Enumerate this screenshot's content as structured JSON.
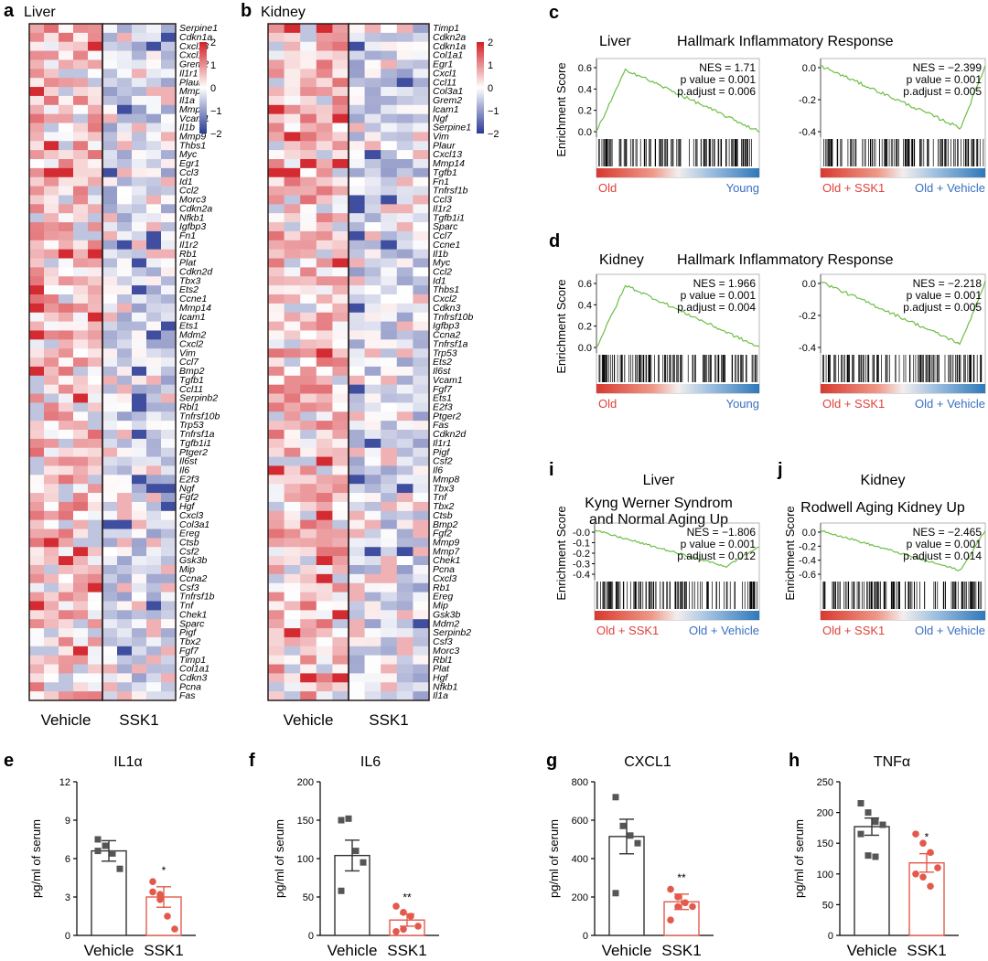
{
  "panels": {
    "a": "a",
    "b": "b",
    "c": "c",
    "d": "d",
    "i": "i",
    "j": "j",
    "e": "e",
    "f": "f",
    "g": "g",
    "h": "h"
  },
  "colors": {
    "heat_low": "#2b3a94",
    "heat_mid": "#ffffff",
    "heat_high": "#d21f26",
    "gsea_line": "#6cbf45",
    "red_label": "#e0413a",
    "blue_label": "#3a6fc2",
    "ssk1_bar": "#e35a4c",
    "vehicle_bar": "#333333"
  },
  "heatmaps": [
    {
      "id": "a",
      "title": "Liver",
      "genes": [
        "Serpine1",
        "Cdkn1a",
        "Cxcl13",
        "Cxcl1",
        "Grem2",
        "Il1r1",
        "Plaur",
        "Mmp8",
        "Il1a",
        "Mmp7",
        "Vcam1",
        "Il1b",
        "Mmp9",
        "Thbs1",
        "Myc",
        "Egr1",
        "Ccl3",
        "Id1",
        "Ccl2",
        "Morc3",
        "Cdkn2a",
        "Nfkb1",
        "Igfbp3",
        "Fn1",
        "Il1r2",
        "Rb1",
        "Plat",
        "Cdkn2d",
        "Tbx3",
        "Ets2",
        "Ccne1",
        "Mmp14",
        "Icam1",
        "Ets1",
        "Mdm2",
        "Cxcl2",
        "Vim",
        "Ccl7",
        "Bmp2",
        "Tgfb1",
        "Ccl11",
        "Serpinb2",
        "Rbl1",
        "Tnfrsf10b",
        "Trp53",
        "Tnfrsf1a",
        "Tgfb1i1",
        "Ptger2",
        "Il6st",
        "Il6",
        "E2f3",
        "Ngf",
        "Fgf2",
        "Hgf",
        "Cxcl3",
        "Col3a1",
        "Ereg",
        "Ctsb",
        "Csf2",
        "Gsk3b",
        "Mip",
        "Ccna2",
        "Csf3",
        "Tnfrsf1b",
        "Tnf",
        "Chek1",
        "Sparc",
        "Pigf",
        "Tbx2",
        "Fgf7",
        "Timp1",
        "Col1a1",
        "Cdkn3",
        "Pcna",
        "Fas"
      ],
      "groups": [
        "Vehicle",
        "SSK1"
      ],
      "legend_ticks": [
        "2",
        "1",
        "0",
        "−1",
        "−2"
      ]
    },
    {
      "id": "b",
      "title": "Kidney",
      "genes": [
        "Timp1",
        "Cdkn2a",
        "Cdkn1a",
        "Col1a1",
        "Egr1",
        "Cxcl1",
        "Ccl11",
        "Col3a1",
        "Grem2",
        "Icam1",
        "Ngf",
        "Serpine1",
        "Vim",
        "Plaur",
        "Cxcl13",
        "Mmp14",
        "Tgfb1",
        "Fn1",
        "Tnfrsf1b",
        "Ccl3",
        "Il1r2",
        "Tgfb1i1",
        "Sparc",
        "Ccl7",
        "Ccne1",
        "Il1b",
        "Myc",
        "Ccl2",
        "Id1",
        "Thbs1",
        "Cxcl2",
        "Cdkn3",
        "Tnfrsf10b",
        "Igfbp3",
        "Ccna2",
        "Tnfrsf1a",
        "Trp53",
        "Ets2",
        "Il6st",
        "Vcam1",
        "Fgf7",
        "Ets1",
        "E2f3",
        "Ptger2",
        "Fas",
        "Cdkn2d",
        "Il1r1",
        "Pigf",
        "Csf2",
        "Il6",
        "Mmp8",
        "Tbx3",
        "Tnf",
        "Tbx2",
        "Ctsb",
        "Bmp2",
        "Fgf2",
        "Mmp9",
        "Mmp7",
        "Chek1",
        "Pcna",
        "Cxcl3",
        "Rb1",
        "Ereg",
        "Mip",
        "Gsk3b",
        "Mdm2",
        "Serpinb2",
        "Csf3",
        "Morc3",
        "Rbl1",
        "Plat",
        "Hgf",
        "Nfkb1",
        "Il1a"
      ],
      "groups": [
        "Vehicle",
        "SSK1"
      ],
      "legend_ticks": [
        "2",
        "1",
        "0",
        "−1",
        "−2"
      ]
    }
  ],
  "gsea": [
    {
      "id": "c",
      "tissue": "Liver",
      "geneset": "Hallmark Inflammatory Response",
      "plots": [
        {
          "nes": "NES = 1.71",
          "pval": "p value = 0.001",
          "padj": "p.adjust = 0.006",
          "yticks": [
            "0.6",
            "0.4",
            "0.2",
            "0.0"
          ],
          "left_label": "Old",
          "right_label": "Young"
        },
        {
          "nes": "NES = −2.399",
          "pval": "p value = 0.001",
          "padj": "p.adjust = 0.005",
          "yticks": [
            "0.0",
            "-0.2",
            "-0.4"
          ],
          "left_label": "Old + SSK1",
          "right_label": "Old + Vehicle"
        }
      ]
    },
    {
      "id": "d",
      "tissue": "Kidney",
      "geneset": "Hallmark Inflammatory Response",
      "plots": [
        {
          "nes": "NES = 1.966",
          "pval": "p value = 0.001",
          "padj": "p.adjust = 0.004",
          "yticks": [
            "0.6",
            "0.4",
            "0.2",
            "0.0"
          ],
          "left_label": "Old",
          "right_label": "Young"
        },
        {
          "nes": "NES = −2.218",
          "pval": "p value = 0.001",
          "padj": "p.adjust = 0.005",
          "yticks": [
            "0.0",
            "-0.2",
            "-0.4"
          ],
          "left_label": "Old + SSK1",
          "right_label": "Old + Vehicle"
        }
      ]
    },
    {
      "id": "i",
      "tissue": "Liver",
      "geneset_lines": [
        "Kyng Werner Syndrom",
        "and Normal Aging Up"
      ],
      "plots": [
        {
          "nes": "NES = −1.806",
          "pval": "p value = 0.001",
          "padj": "p.adjust = 0.012",
          "yticks": [
            "-0.0",
            "-0.1",
            "-0.2",
            "-0.3",
            "-0.4"
          ],
          "left_label": "Old + SSK1",
          "right_label": "Old + Vehicle"
        }
      ]
    },
    {
      "id": "j",
      "tissue": "Kidney",
      "geneset_lines": [
        "Rodwell Aging Kidney Up"
      ],
      "plots": [
        {
          "nes": "NES = −2.465",
          "pval": "p value = 0.001",
          "padj": "p.adjust = 0.014",
          "yticks": [
            "0.0",
            "-0.2",
            "-0.4",
            "-0.6"
          ],
          "left_label": "Old + SSK1",
          "right_label": "Old + Vehicle"
        }
      ]
    }
  ],
  "ylabel_gsea": "Enrichment Score",
  "chart_data": [
    {
      "type": "bar",
      "panel": "e",
      "title": "IL1α",
      "ylabel": "pg/ml of serum",
      "ylim": [
        0,
        12
      ],
      "yticks": [
        0,
        3,
        6,
        9,
        12
      ],
      "categories": [
        "Vehicle",
        "SSK1"
      ],
      "values": [
        6.6,
        3.0
      ],
      "sem": [
        0.8,
        0.8
      ],
      "significance": [
        "",
        "*"
      ],
      "points": [
        [
          7.5,
          7.0,
          6.4,
          5.2,
          6.6
        ],
        [
          4.2,
          2.8,
          1.5,
          0.5,
          3.4,
          3.2
        ]
      ]
    },
    {
      "type": "bar",
      "panel": "f",
      "title": "IL6",
      "ylabel": "pg/ml of serum",
      "ylim": [
        0,
        200
      ],
      "yticks": [
        0,
        50,
        100,
        150,
        200
      ],
      "categories": [
        "Vehicle",
        "SSK1"
      ],
      "values": [
        104,
        20
      ],
      "sem": [
        20,
        8
      ],
      "significance": [
        "",
        "**"
      ],
      "points": [
        [
          150,
          152,
          110,
          95,
          58
        ],
        [
          38,
          30,
          25,
          12,
          5,
          8
        ]
      ]
    },
    {
      "type": "bar",
      "panel": "g",
      "title": "CXCL1",
      "ylabel": "pg/ml of serum",
      "ylim": [
        0,
        800
      ],
      "yticks": [
        0,
        200,
        400,
        600,
        800
      ],
      "categories": [
        "Vehicle",
        "SSK1"
      ],
      "values": [
        515,
        175
      ],
      "sem": [
        90,
        40
      ],
      "significance": [
        "",
        "**"
      ],
      "points": [
        [
          720,
          570,
          520,
          480,
          220
        ],
        [
          240,
          200,
          170,
          150,
          80,
          150
        ]
      ]
    },
    {
      "type": "bar",
      "panel": "h",
      "title": "TNFα",
      "ylabel": "pg/ml of serum",
      "ylim": [
        0,
        250
      ],
      "yticks": [
        0,
        50,
        100,
        150,
        200,
        250
      ],
      "categories": [
        "Vehicle",
        "SSK1"
      ],
      "values": [
        177,
        118
      ],
      "sem": [
        14,
        15
      ],
      "significance": [
        "",
        "*"
      ],
      "points": [
        [
          215,
          200,
          185,
          180,
          165,
          130,
          128
        ],
        [
          165,
          150,
          135,
          110,
          100,
          95,
          80
        ]
      ]
    }
  ]
}
